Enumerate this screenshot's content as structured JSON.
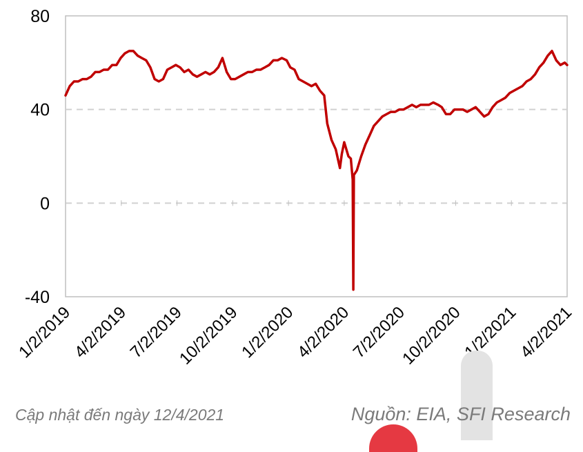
{
  "chart_data": {
    "type": "line",
    "title": "",
    "xlabel": "",
    "ylabel": "",
    "ylim": [
      -40,
      80
    ],
    "yticks": [
      "80",
      "40",
      "0",
      "-40"
    ],
    "xticks": [
      "1/2/2019",
      "4/2/2019",
      "7/2/2019",
      "10/2/2019",
      "1/2/2020",
      "4/2/2020",
      "7/2/2020",
      "10/2/2020",
      "1/2/2021",
      "4/2/2021"
    ],
    "xlim": [
      "2019-01-02",
      "2021-04-09"
    ],
    "grid": "dashed horizontal at 0 and 40",
    "line_color": "#c00000",
    "series": [
      {
        "x": [
          "2019-01-02",
          "2019-01-09",
          "2019-01-16",
          "2019-01-23",
          "2019-01-30",
          "2019-02-06",
          "2019-02-13",
          "2019-02-20",
          "2019-02-27",
          "2019-03-06",
          "2019-03-13",
          "2019-03-20",
          "2019-03-27",
          "2019-04-03",
          "2019-04-10",
          "2019-04-17",
          "2019-04-24",
          "2019-05-01",
          "2019-05-08",
          "2019-05-15",
          "2019-05-22",
          "2019-05-29",
          "2019-06-05",
          "2019-06-12",
          "2019-06-19",
          "2019-06-26",
          "2019-07-03",
          "2019-07-10",
          "2019-07-17",
          "2019-07-24",
          "2019-07-31",
          "2019-08-07",
          "2019-08-14",
          "2019-08-21",
          "2019-08-28",
          "2019-09-04",
          "2019-09-11",
          "2019-09-18",
          "2019-09-25",
          "2019-10-02",
          "2019-10-09",
          "2019-10-16",
          "2019-10-23",
          "2019-10-30",
          "2019-11-06",
          "2019-11-13",
          "2019-11-20",
          "2019-11-27",
          "2019-12-04",
          "2019-12-11",
          "2019-12-18",
          "2019-12-25",
          "2020-01-02",
          "2020-01-08",
          "2020-01-15",
          "2020-01-22",
          "2020-01-29",
          "2020-02-05",
          "2020-02-12",
          "2020-02-19",
          "2020-02-26",
          "2020-03-04",
          "2020-03-09",
          "2020-03-16",
          "2020-03-23",
          "2020-03-30",
          "2020-04-02",
          "2020-04-06",
          "2020-04-13",
          "2020-04-17",
          "2020-04-20",
          "2020-04-21",
          "2020-04-22",
          "2020-04-27",
          "2020-05-04",
          "2020-05-11",
          "2020-05-18",
          "2020-05-25",
          "2020-06-01",
          "2020-06-08",
          "2020-06-15",
          "2020-06-22",
          "2020-06-29",
          "2020-07-06",
          "2020-07-13",
          "2020-07-20",
          "2020-07-27",
          "2020-08-03",
          "2020-08-10",
          "2020-08-17",
          "2020-08-24",
          "2020-08-31",
          "2020-09-08",
          "2020-09-14",
          "2020-09-21",
          "2020-09-28",
          "2020-10-05",
          "2020-10-12",
          "2020-10-19",
          "2020-10-26",
          "2020-11-02",
          "2020-11-09",
          "2020-11-16",
          "2020-11-23",
          "2020-11-30",
          "2020-12-07",
          "2020-12-14",
          "2020-12-21",
          "2020-12-28",
          "2021-01-04",
          "2021-01-11",
          "2021-01-18",
          "2021-01-25",
          "2021-02-01",
          "2021-02-08",
          "2021-02-15",
          "2021-02-22",
          "2021-03-01",
          "2021-03-08",
          "2021-03-15",
          "2021-03-22",
          "2021-03-29",
          "2021-04-05",
          "2021-04-09"
        ],
        "y": [
          46,
          50,
          52,
          52,
          53,
          53,
          54,
          56,
          56,
          57,
          57,
          59,
          59,
          62,
          64,
          65,
          65,
          63,
          62,
          61,
          58,
          53,
          52,
          53,
          57,
          58,
          59,
          58,
          56,
          57,
          55,
          54,
          55,
          56,
          55,
          56,
          58,
          62,
          56,
          53,
          53,
          54,
          55,
          56,
          56,
          57,
          57,
          58,
          59,
          61,
          61,
          62,
          61,
          58,
          57,
          53,
          52,
          51,
          50,
          51,
          48,
          46,
          34,
          27,
          23,
          15,
          21,
          26,
          20,
          19,
          10,
          -37,
          12,
          14,
          20,
          25,
          29,
          33,
          35,
          37,
          38,
          39,
          39,
          40,
          40,
          41,
          42,
          41,
          42,
          42,
          42,
          43,
          42,
          41,
          38,
          38,
          40,
          40,
          40,
          39,
          40,
          41,
          39,
          37,
          38,
          41,
          43,
          44,
          45,
          47,
          48,
          49,
          50,
          52,
          53,
          55,
          58,
          60,
          63,
          65,
          61,
          59,
          60,
          59
        ]
      }
    ]
  },
  "footer": {
    "updated": "Cập nhật đến ngày 12/4/2021",
    "source": "Nguồn: EIA, SFI Research"
  }
}
